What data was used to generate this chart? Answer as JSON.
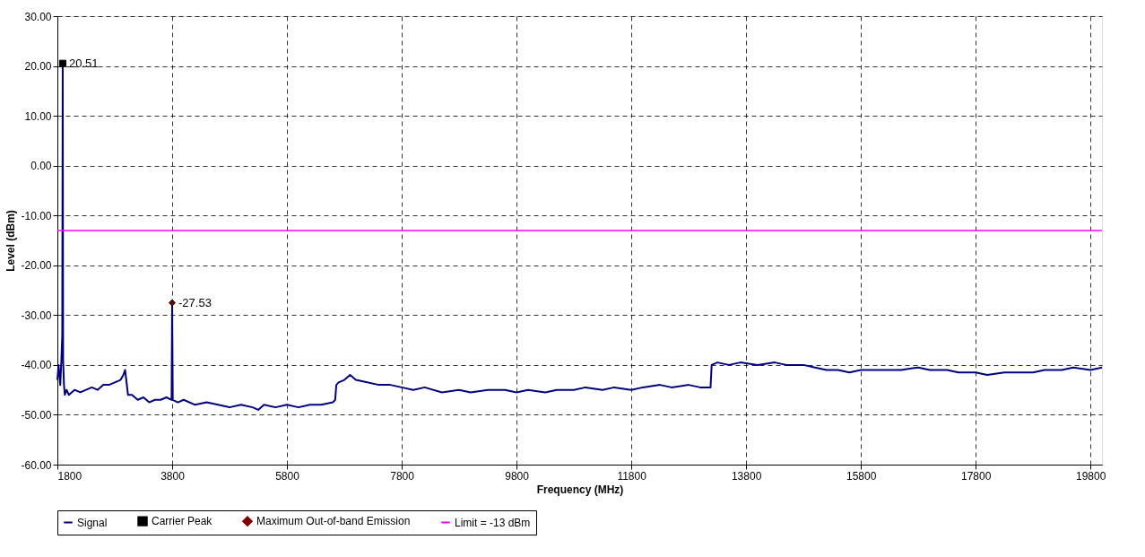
{
  "chart_data": {
    "type": "line",
    "xlabel": "Frequency (MHz)",
    "ylabel": "Level (dBm)",
    "xlim": [
      1800,
      20000
    ],
    "ylim": [
      -60,
      30
    ],
    "xticks": [
      1800,
      3800,
      5800,
      7800,
      9800,
      11800,
      13800,
      15800,
      17800,
      19800
    ],
    "yticks": [
      {
        "value": 30,
        "label": "30.00"
      },
      {
        "value": 20,
        "label": "20.00"
      },
      {
        "value": 10,
        "label": "10.00"
      },
      {
        "value": 0,
        "label": "0.00"
      },
      {
        "value": -10,
        "label": "-10.00"
      },
      {
        "value": -20,
        "label": "-20.00"
      },
      {
        "value": -30,
        "label": "-30.00"
      },
      {
        "value": -40,
        "label": "-40.00"
      },
      {
        "value": -50,
        "label": "-50.00"
      },
      {
        "value": -60,
        "label": "-60.00"
      }
    ],
    "grid": true,
    "legend": "bottom",
    "series": [
      {
        "name": "Signal",
        "color": "#000080",
        "marker": "none",
        "x": [
          1800,
          1820,
          1850,
          1870,
          1885,
          1893,
          1900,
          1915,
          1930,
          1960,
          2000,
          2100,
          2200,
          2300,
          2400,
          2500,
          2600,
          2700,
          2800,
          2900,
          2950,
          2980,
          3000,
          3030,
          3100,
          3200,
          3300,
          3400,
          3500,
          3600,
          3700,
          3790,
          3800,
          3810,
          3900,
          4000,
          4200,
          4400,
          4600,
          4800,
          5000,
          5200,
          5300,
          5400,
          5600,
          5800,
          6000,
          6200,
          6400,
          6600,
          6640,
          6660,
          6700,
          6800,
          6900,
          7000,
          7200,
          7400,
          7600,
          7800,
          8000,
          8200,
          8500,
          8800,
          9000,
          9300,
          9600,
          9800,
          10000,
          10300,
          10500,
          10800,
          11000,
          11300,
          11500,
          11800,
          12000,
          12300,
          12500,
          12800,
          13000,
          13180,
          13200,
          13300,
          13500,
          13700,
          14000,
          14300,
          14500,
          14800,
          15000,
          15200,
          15400,
          15600,
          15800,
          16000,
          16300,
          16500,
          16800,
          17000,
          17300,
          17500,
          17800,
          18000,
          18300,
          18500,
          18800,
          19000,
          19300,
          19500,
          19800,
          20000
        ],
        "values": [
          -43,
          -40,
          -44,
          -39,
          -34,
          20.5,
          -39,
          -44,
          -46,
          -45,
          -46,
          -45,
          -45.5,
          -45,
          -44.5,
          -45,
          -44,
          -44,
          -43.5,
          -43,
          -42,
          -41,
          -43,
          -46,
          -46,
          -47,
          -46.5,
          -47.5,
          -47,
          -47,
          -46.5,
          -47,
          -27.5,
          -47,
          -47.5,
          -47,
          -48,
          -47.5,
          -48,
          -48.5,
          -48,
          -48.5,
          -49,
          -48,
          -48.5,
          -48,
          -48.5,
          -48,
          -48,
          -47.5,
          -47,
          -44,
          -43.5,
          -43,
          -42,
          -43,
          -43.5,
          -44,
          -44,
          -44.5,
          -45,
          -44.5,
          -45.5,
          -45,
          -45.5,
          -45,
          -45,
          -45.5,
          -45,
          -45.5,
          -45,
          -45,
          -44.5,
          -45,
          -44.5,
          -45,
          -44.5,
          -44,
          -44.5,
          -44,
          -44.5,
          -44.5,
          -40,
          -39.5,
          -40,
          -39.5,
          -40,
          -39.5,
          -40,
          -40,
          -40.5,
          -41,
          -41,
          -41.5,
          -41,
          -41,
          -41,
          -41,
          -40.5,
          -41,
          -41,
          -41.5,
          -41.5,
          -42,
          -41.5,
          -41.5,
          -41.5,
          -41,
          -41,
          -40.5,
          -41,
          -40.5
        ]
      },
      {
        "name": "Carrier Peak",
        "type": "scatter",
        "color": "#000000",
        "marker": "square",
        "x": [
          1893
        ],
        "values": [
          20.51
        ],
        "value_labels": [
          "20.51"
        ]
      },
      {
        "name": "Maximum Out-of-band Emission",
        "type": "scatter",
        "color": "#800000",
        "marker": "diamond",
        "x": [
          3800
        ],
        "values": [
          -27.53
        ],
        "value_labels": [
          "-27.53"
        ]
      },
      {
        "name": "Limit = -13 dBm",
        "color": "#ff00ff",
        "marker": "none",
        "x": [
          1800,
          20000
        ],
        "values": [
          -13,
          -13
        ]
      }
    ]
  }
}
